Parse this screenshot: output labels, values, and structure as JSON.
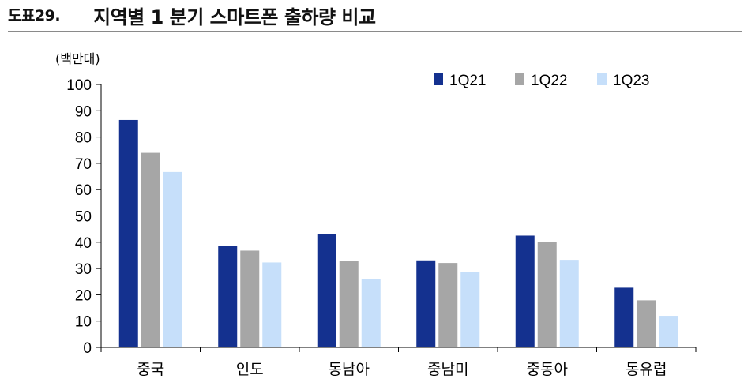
{
  "header": {
    "figure_number": "도표29.",
    "title": "지역별 1 분기 스마트폰 출하량 비교"
  },
  "chart_data": {
    "type": "bar",
    "unit": "(백만대)",
    "categories": [
      "중국",
      "인도",
      "동남아",
      "중남미",
      "중동아",
      "동유럽"
    ],
    "series": [
      {
        "name": "1Q21",
        "color": "#14318f",
        "values": [
          86.5,
          38.5,
          43.2,
          33.1,
          42.5,
          22.7
        ]
      },
      {
        "name": "1Q22",
        "color": "#a6a6a6",
        "values": [
          74.0,
          36.8,
          32.8,
          32.1,
          40.2,
          17.9
        ]
      },
      {
        "name": "1Q23",
        "color": "#c6dffa",
        "values": [
          66.7,
          32.3,
          26.1,
          28.6,
          33.3,
          12.0
        ]
      }
    ],
    "ylim": [
      0,
      100
    ],
    "yticks": [
      0,
      10,
      20,
      30,
      40,
      50,
      60,
      70,
      80,
      90,
      100
    ],
    "legend_position": "top-right",
    "grid": false
  }
}
